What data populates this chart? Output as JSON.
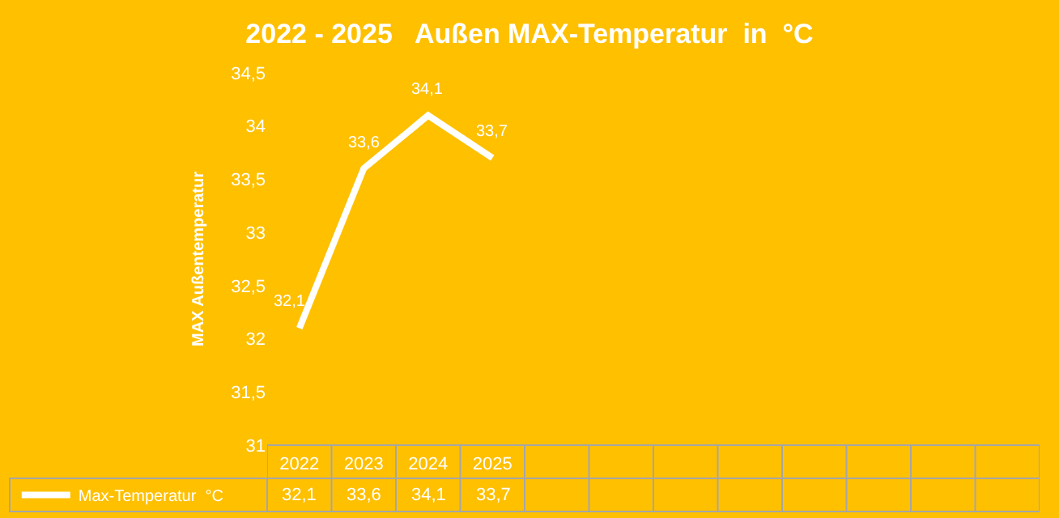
{
  "chart_data": {
    "type": "line",
    "title": "2022 - 2025   Außen MAX-Temperatur  in  °C",
    "ylabel": "MAX Außentemperatur",
    "categories": [
      "2022",
      "2023",
      "2024",
      "2025",
      null,
      null,
      null,
      null,
      null,
      null,
      null,
      null
    ],
    "series": [
      {
        "name": "Max-Temperatur  °C",
        "color": "#ffffff",
        "values": [
          32.1,
          33.6,
          34.1,
          33.7,
          null,
          null,
          null,
          null,
          null,
          null,
          null,
          null
        ],
        "value_labels": [
          "32,1",
          "33,6",
          "34,1",
          "33,7",
          null,
          null,
          null,
          null,
          null,
          null,
          null,
          null
        ]
      }
    ],
    "ylim": [
      31,
      34.5
    ],
    "yticks": [
      31,
      {
        "value": 31.5,
        "label": "31,5"
      },
      32,
      {
        "value": 32.5,
        "label": "32,5"
      },
      33,
      {
        "value": 33.5,
        "label": "33,5"
      },
      34,
      {
        "value": 34.5,
        "label": "34,5"
      }
    ],
    "grid": false,
    "legend": "bottom left",
    "marker": "none",
    "line_style": "solid"
  }
}
